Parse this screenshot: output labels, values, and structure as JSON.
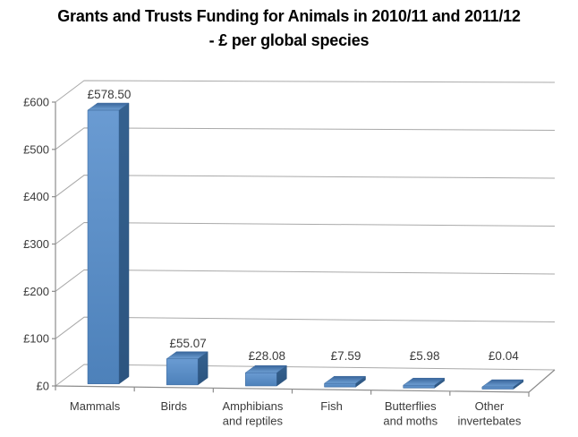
{
  "title": {
    "line1": "Grants and Trusts Funding for Animals in 2010/11 and 2011/12",
    "line2": "- £ per global species"
  },
  "chart_data": {
    "type": "bar",
    "style": "3d-column",
    "title": "Grants and Trusts Funding for Animals in 2010/11 and 2011/12 - £ per global species",
    "categories": [
      "Mammals",
      "Birds",
      "Amphibians and reptiles",
      "Fish",
      "Butterflies and moths",
      "Other invertebates"
    ],
    "category_label_lines": [
      [
        "Mammals"
      ],
      [
        "Birds"
      ],
      [
        "Amphibians",
        "and reptiles"
      ],
      [
        "Fish"
      ],
      [
        "Butterflies",
        "and moths"
      ],
      [
        "Other",
        "invertebates"
      ]
    ],
    "values": [
      578.5,
      55.07,
      28.08,
      7.59,
      5.98,
      0.04
    ],
    "data_labels": [
      "£578.50",
      "£55.07",
      "£28.08",
      "£7.59",
      "£5.98",
      "£0.04"
    ],
    "xlabel": "",
    "ylabel": "",
    "ylim": [
      0,
      600
    ],
    "ytick_step": 100,
    "ytick_labels": [
      "£0",
      "£100",
      "£200",
      "£300",
      "£400",
      "£500",
      "£600"
    ],
    "grid": true,
    "legend": "none",
    "colors": {
      "bar_front_light": "#6A9BD2",
      "bar_front_dark": "#4D81BA",
      "bar_top_back": "#38659B",
      "bar_top_front": "#6FA0D4",
      "bar_side_light": "#35618F",
      "bar_side_dark": "#2C547F",
      "bar_edge": "#3A669A",
      "gridline": "#A9A9A9",
      "axis": "#8C8C8C",
      "text": "#3B3B3B",
      "title_text": "#000000"
    }
  }
}
